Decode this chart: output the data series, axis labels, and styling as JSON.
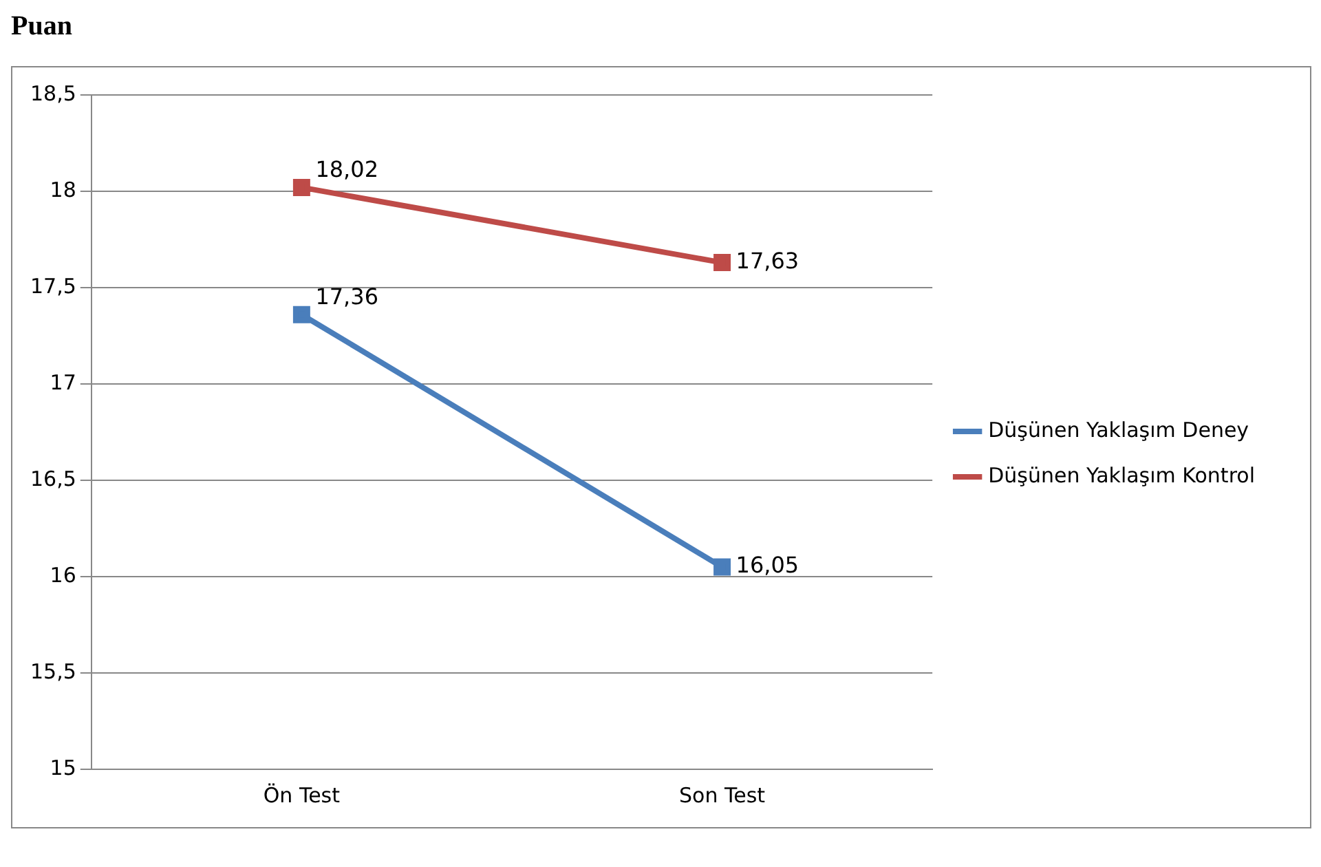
{
  "chart_data": {
    "type": "line",
    "ylabel": "Puan",
    "categories": [
      "Ön Test",
      "Son Test"
    ],
    "series": [
      {
        "name": "Düşünen Yaklaşım Deney",
        "color": "#4a7ebb",
        "values": [
          17.36,
          16.05
        ],
        "value_labels": [
          "17,36",
          "16,05"
        ]
      },
      {
        "name": "Düşünen Yaklaşım Kontrol",
        "color": "#be4b48",
        "values": [
          18.02,
          17.63
        ],
        "value_labels": [
          "18,02",
          "17,63"
        ]
      }
    ],
    "ylim": [
      15,
      18.5
    ],
    "yticks": [
      15,
      {
        "value": 15.5,
        "label": "15,5"
      },
      16,
      {
        "value": 16.5,
        "label": "16,5"
      },
      17,
      {
        "value": 17.5,
        "label": "17,5"
      },
      18,
      {
        "value": 18.5,
        "label": "18,5"
      }
    ],
    "grid": "y",
    "legend": "right",
    "marker": "square",
    "line_style": "solid"
  }
}
